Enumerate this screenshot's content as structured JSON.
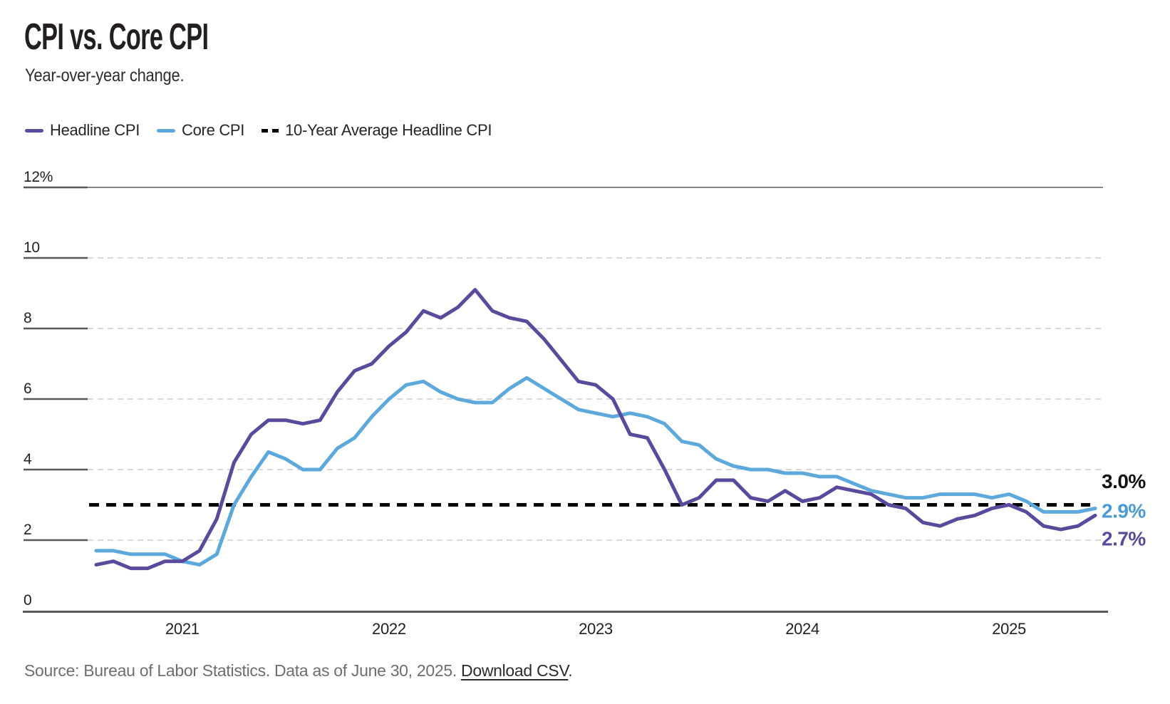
{
  "header": {
    "title": "CPI vs. Core CPI",
    "subtitle": "Year-over-year change."
  },
  "legend": {
    "items": [
      {
        "label": "Headline CPI",
        "type": "line",
        "color": "#5b4a9c"
      },
      {
        "label": "Core CPI",
        "type": "line",
        "color": "#5ea9db"
      },
      {
        "label": "10-Year Average Headline CPI",
        "type": "dashed",
        "color": "#000000"
      }
    ]
  },
  "chart_data": {
    "type": "line",
    "x_unit": "month",
    "months": [
      "2020-08",
      "2020-09",
      "2020-10",
      "2020-11",
      "2020-12",
      "2021-01",
      "2021-02",
      "2021-03",
      "2021-04",
      "2021-05",
      "2021-06",
      "2021-07",
      "2021-08",
      "2021-09",
      "2021-10",
      "2021-11",
      "2021-12",
      "2022-01",
      "2022-02",
      "2022-03",
      "2022-04",
      "2022-05",
      "2022-06",
      "2022-07",
      "2022-08",
      "2022-09",
      "2022-10",
      "2022-11",
      "2022-12",
      "2023-01",
      "2023-02",
      "2023-03",
      "2023-04",
      "2023-05",
      "2023-06",
      "2023-07",
      "2023-08",
      "2023-09",
      "2023-10",
      "2023-11",
      "2023-12",
      "2024-01",
      "2024-02",
      "2024-03",
      "2024-04",
      "2024-05",
      "2024-06",
      "2024-07",
      "2024-08",
      "2024-09",
      "2024-10",
      "2024-11",
      "2024-12",
      "2025-01",
      "2025-02",
      "2025-03",
      "2025-04",
      "2025-05",
      "2025-06"
    ],
    "series": [
      {
        "name": "Headline CPI",
        "color": "#5b4a9c",
        "values": [
          1.3,
          1.4,
          1.2,
          1.2,
          1.4,
          1.4,
          1.7,
          2.6,
          4.2,
          5.0,
          5.4,
          5.4,
          5.3,
          5.4,
          6.2,
          6.8,
          7.0,
          7.5,
          7.9,
          8.5,
          8.3,
          8.6,
          9.1,
          8.5,
          8.3,
          8.2,
          7.7,
          7.1,
          6.5,
          6.4,
          6.0,
          5.0,
          4.9,
          4.0,
          3.0,
          3.2,
          3.7,
          3.7,
          3.2,
          3.1,
          3.4,
          3.1,
          3.2,
          3.5,
          3.4,
          3.3,
          3.0,
          2.9,
          2.5,
          2.4,
          2.6,
          2.7,
          2.9,
          3.0,
          2.8,
          2.4,
          2.3,
          2.4,
          2.7
        ]
      },
      {
        "name": "Core CPI",
        "color": "#5ea9db",
        "values": [
          1.7,
          1.7,
          1.6,
          1.6,
          1.6,
          1.4,
          1.3,
          1.6,
          3.0,
          3.8,
          4.5,
          4.3,
          4.0,
          4.0,
          4.6,
          4.9,
          5.5,
          6.0,
          6.4,
          6.5,
          6.2,
          6.0,
          5.9,
          5.9,
          6.3,
          6.6,
          6.3,
          6.0,
          5.7,
          5.6,
          5.5,
          5.6,
          5.5,
          5.3,
          4.8,
          4.7,
          4.3,
          4.1,
          4.0,
          4.0,
          3.9,
          3.9,
          3.8,
          3.8,
          3.6,
          3.4,
          3.3,
          3.2,
          3.2,
          3.3,
          3.3,
          3.3,
          3.2,
          3.3,
          3.1,
          2.8,
          2.8,
          2.8,
          2.9
        ]
      }
    ],
    "average_line": {
      "name": "10-Year Average Headline CPI",
      "value": 3.0,
      "color": "#000000",
      "style": "dashed"
    },
    "end_labels": [
      {
        "text": "3.0%",
        "color": "#111111"
      },
      {
        "text": "2.9%",
        "color": "#4a9ad3"
      },
      {
        "text": "2.7%",
        "color": "#5b4a9c"
      }
    ],
    "yticks": [
      {
        "value": 12,
        "label": "12%"
      },
      {
        "value": 10,
        "label": "10"
      },
      {
        "value": 8,
        "label": "8"
      },
      {
        "value": 6,
        "label": "6"
      },
      {
        "value": 4,
        "label": "4"
      },
      {
        "value": 2,
        "label": "2"
      },
      {
        "value": 0,
        "label": "0"
      }
    ],
    "xticks": [
      {
        "month_index": 5,
        "label": "2021"
      },
      {
        "month_index": 17,
        "label": "2022"
      },
      {
        "month_index": 29,
        "label": "2023"
      },
      {
        "month_index": 41,
        "label": "2024"
      },
      {
        "month_index": 53,
        "label": "2025"
      }
    ],
    "ylim": [
      0,
      12
    ],
    "grid": "horizontal-dashed",
    "legend_position": "top-left"
  },
  "footer": {
    "source_text": "Source: Bureau of Labor Statistics. Data as of June 30, 2025.",
    "link_label": "Download CSV",
    "after_link": "."
  }
}
